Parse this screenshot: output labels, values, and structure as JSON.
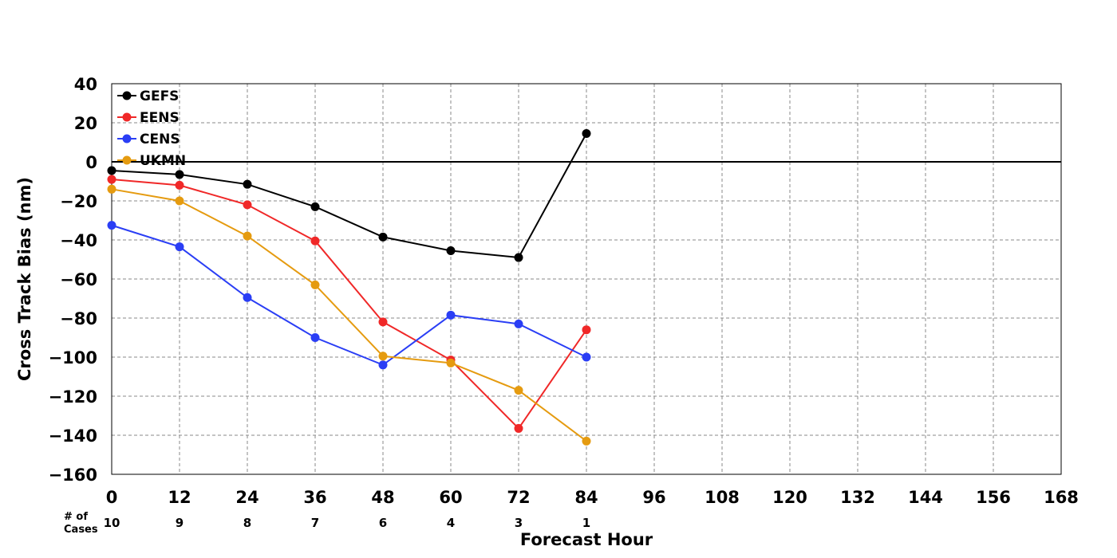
{
  "chart_data": {
    "type": "line",
    "title": "",
    "xlabel": "Forecast Hour",
    "ylabel": "Cross Track Bias (nm)",
    "xlim": [
      0,
      168
    ],
    "ylim": [
      -160,
      40
    ],
    "x_ticks": [
      0,
      12,
      24,
      36,
      48,
      60,
      72,
      84,
      96,
      108,
      120,
      132,
      144,
      156,
      168
    ],
    "y_ticks": [
      40,
      20,
      0,
      -20,
      -40,
      -60,
      -80,
      -100,
      -120,
      -140,
      -160
    ],
    "x_tick_labels": [
      "0",
      "12",
      "24",
      "36",
      "48",
      "60",
      "72",
      "84",
      "96",
      "108",
      "120",
      "132",
      "144",
      "156",
      "168"
    ],
    "y_tick_labels": [
      "40",
      "20",
      "0",
      "−20",
      "−40",
      "−60",
      "−80",
      "−100",
      "−120",
      "−140",
      "−160"
    ],
    "grid": true,
    "zero_line": true,
    "legend_position": "top-left",
    "cases_label_line1": "# of",
    "cases_label_line2": "Cases",
    "cases": [
      {
        "x": 0,
        "label": "10"
      },
      {
        "x": 12,
        "label": "9"
      },
      {
        "x": 24,
        "label": "8"
      },
      {
        "x": 36,
        "label": "7"
      },
      {
        "x": 48,
        "label": "6"
      },
      {
        "x": 60,
        "label": "4"
      },
      {
        "x": 72,
        "label": "3"
      },
      {
        "x": 84,
        "label": "1"
      }
    ],
    "x": [
      0,
      12,
      24,
      36,
      48,
      60,
      72,
      84
    ],
    "series": [
      {
        "name": "GEFS",
        "color": "#000000",
        "values": [
          -4.5,
          -6.5,
          -11.5,
          -23,
          -38.5,
          -45.5,
          -49,
          14.5
        ]
      },
      {
        "name": "EENS",
        "color": "#f02828",
        "values": [
          -9,
          -12,
          -22,
          -40.5,
          -82,
          -101.5,
          -136.5,
          -86
        ]
      },
      {
        "name": "CENS",
        "color": "#2a3ef5",
        "values": [
          -32.5,
          -43.5,
          -69.5,
          -90,
          -104,
          -78.5,
          -83,
          -100
        ]
      },
      {
        "name": "UKMN",
        "color": "#e59b10",
        "values": [
          -14,
          -20,
          -38,
          -63,
          -99.5,
          -103,
          -117,
          -143
        ]
      }
    ]
  }
}
